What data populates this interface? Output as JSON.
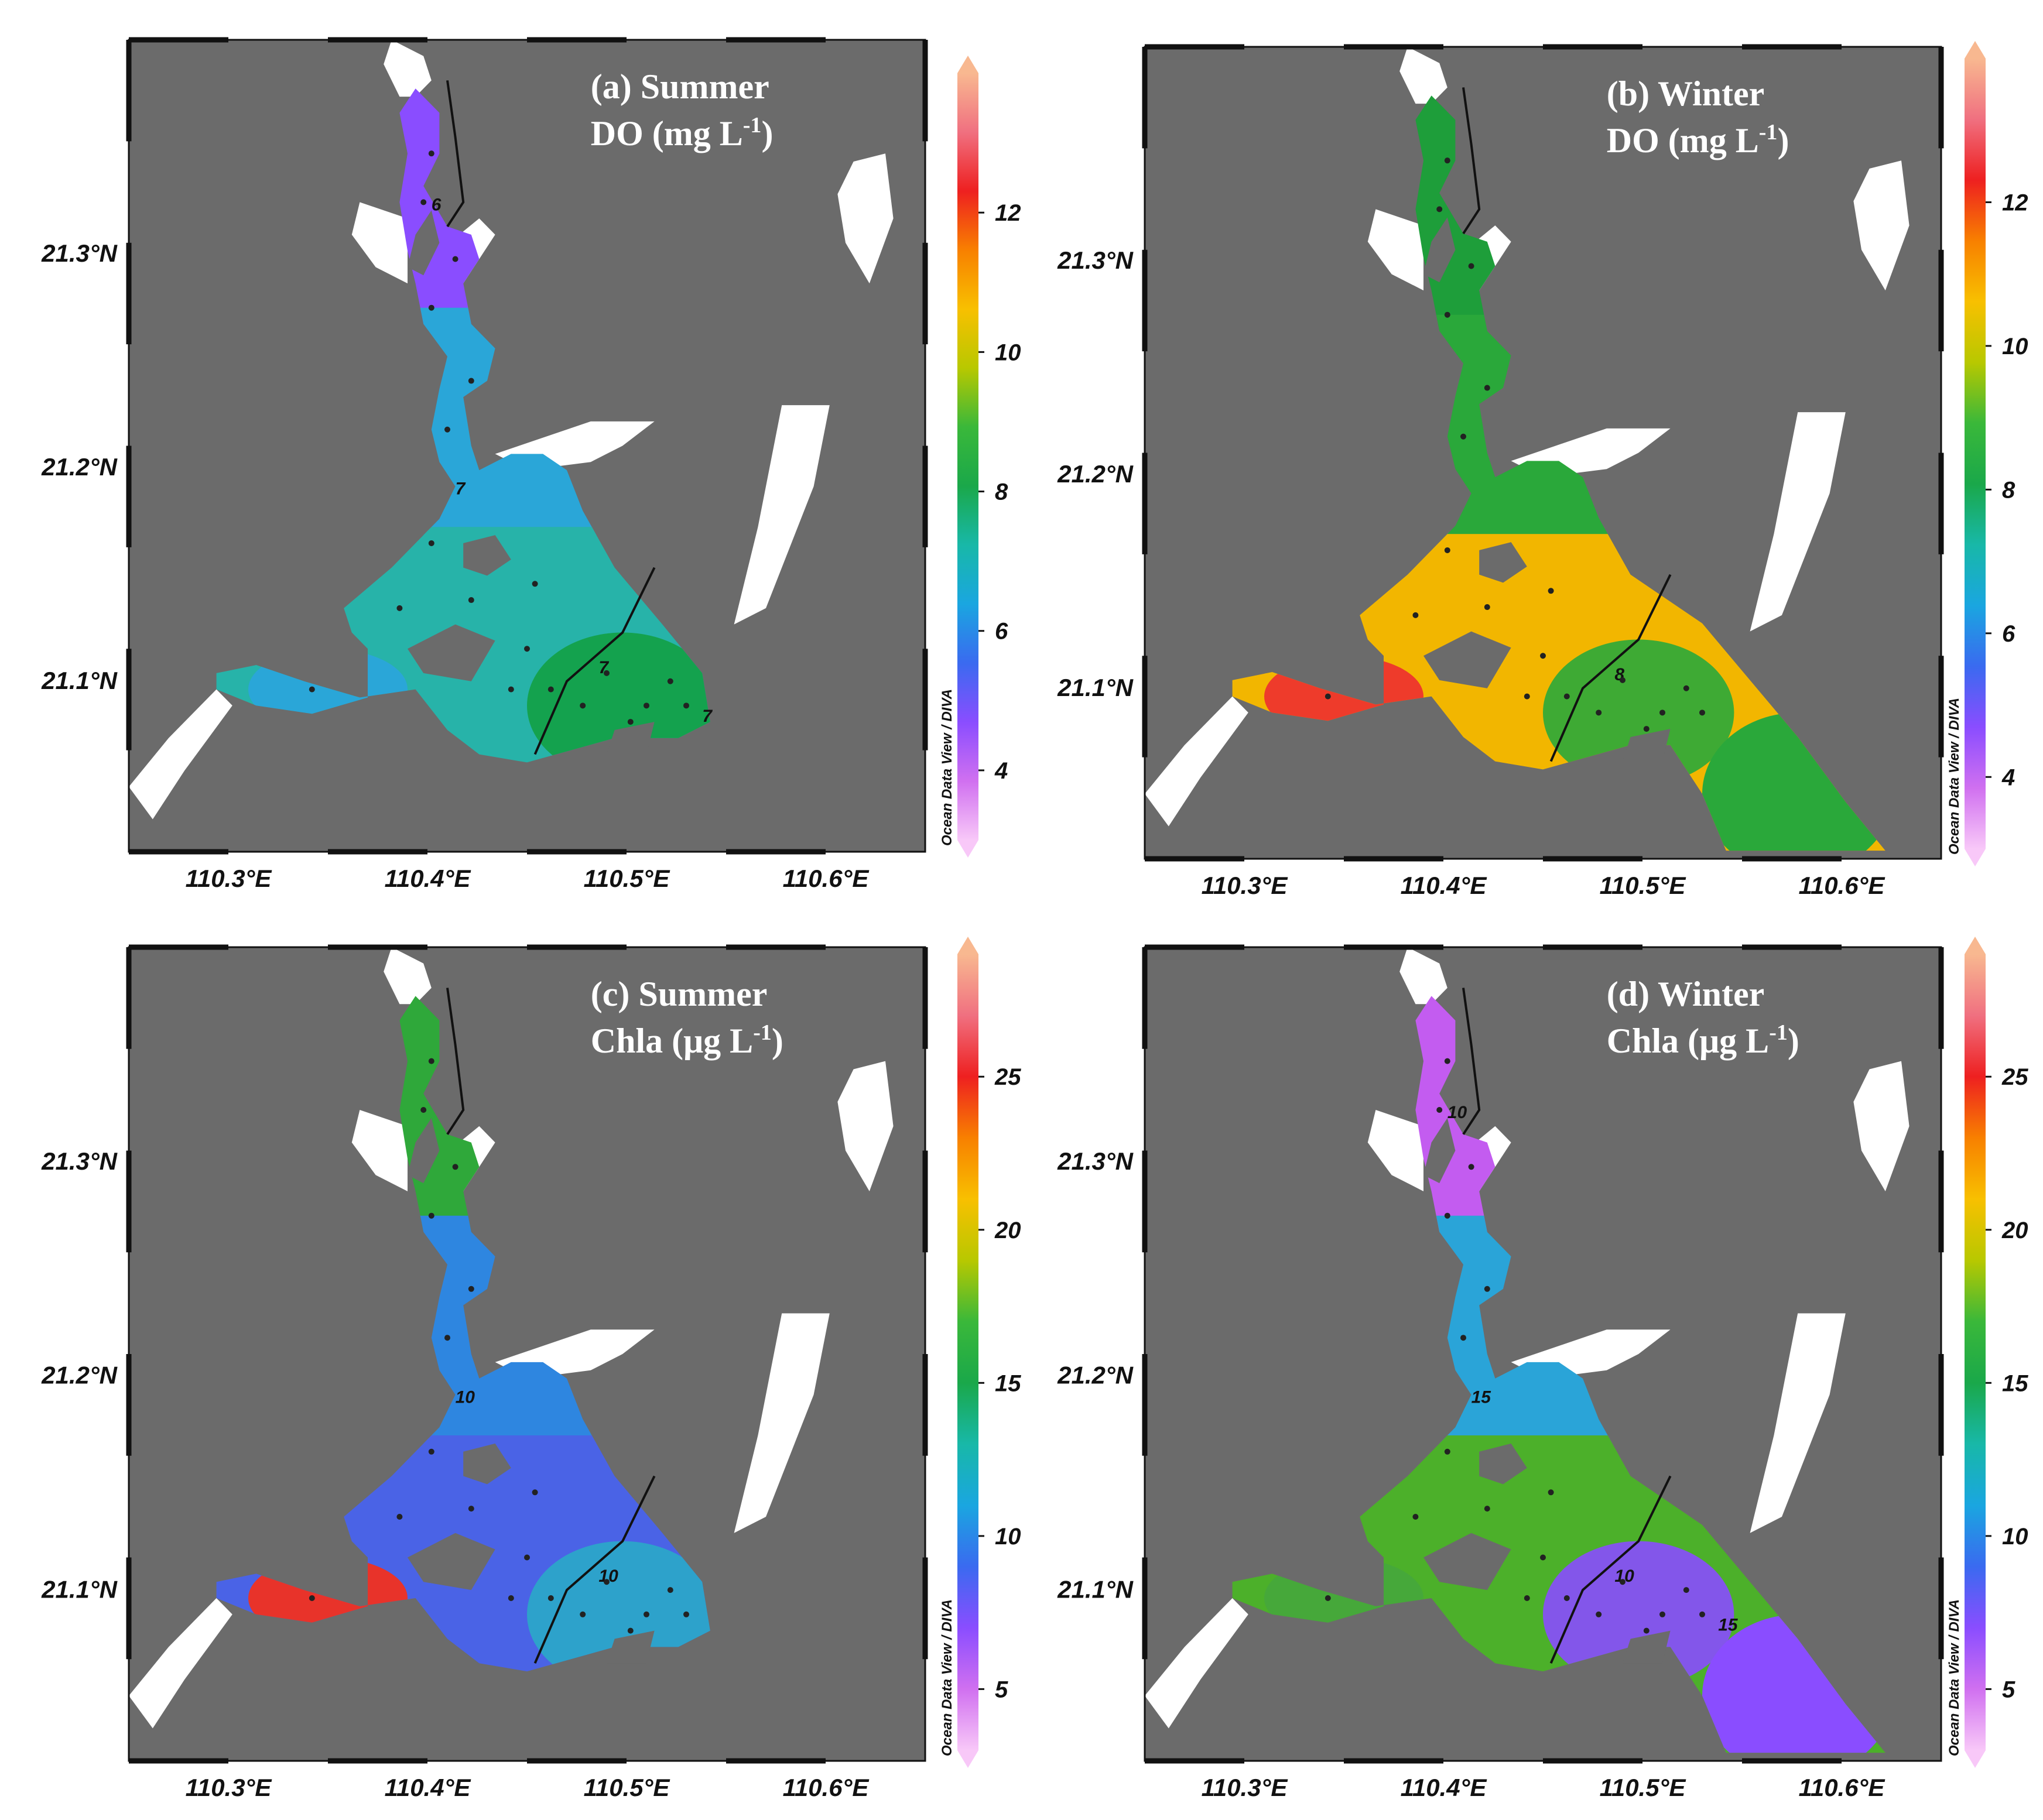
{
  "panels": [
    {
      "id": "a",
      "title_line1": "(a) Summer",
      "title_line2_pre": "DO (mg L",
      "title_line2_sup": "-1",
      "title_line2_post": ")",
      "colorbar_ticks": [
        "4",
        "6",
        "8",
        "10",
        "12"
      ],
      "colorbar_range": [
        3,
        14
      ],
      "credit": "Ocean Data View / DIVA",
      "contour_labels": [
        "7",
        "7",
        "7",
        "6"
      ],
      "colors": {
        "north": "#8a4dff",
        "channel": "#2aa6d8",
        "bay": "#27b3a9",
        "east": "#13a044",
        "west": "#2aa6d8"
      }
    },
    {
      "id": "b",
      "title_line1": "(b) Winter",
      "title_line2_pre": "DO (mg L",
      "title_line2_sup": "-1",
      "title_line2_post": ")",
      "colorbar_ticks": [
        "4",
        "6",
        "8",
        "10",
        "12"
      ],
      "colorbar_range": [
        3,
        14
      ],
      "credit": "Ocean Data View / DIVA",
      "contour_labels": [
        "8"
      ],
      "colors": {
        "north": "#1e9e3a",
        "channel": "#2aa83a",
        "bay": "#f2b600",
        "east": "#2aa83a",
        "west": "#ee3b2b"
      }
    },
    {
      "id": "c",
      "title_line1": "(c) Summer",
      "title_line2_pre": "Chla (μg L",
      "title_line2_sup": "-1",
      "title_line2_post": ")",
      "colorbar_ticks": [
        "5",
        "10",
        "15",
        "20",
        "25"
      ],
      "colorbar_range": [
        3,
        29
      ],
      "credit": "Ocean Data View / DIVA",
      "contour_labels": [
        "10",
        "10"
      ],
      "colors": {
        "north": "#2fa83a",
        "channel": "#2e86e0",
        "bay": "#4a63e6",
        "east": "#2aa9c8",
        "west": "#e8332a"
      }
    },
    {
      "id": "d",
      "title_line1": "(d) Winter",
      "title_line2_pre": "Chla (μg L",
      "title_line2_sup": "-1",
      "title_line2_post": ")",
      "colorbar_ticks": [
        "5",
        "10",
        "15",
        "20",
        "25"
      ],
      "colorbar_range": [
        3,
        29
      ],
      "credit": "Ocean Data View / DIVA",
      "contour_labels": [
        "10",
        "15",
        "15",
        "10"
      ],
      "colors": {
        "north": "#c35cf0",
        "channel": "#2aa4d8",
        "bay": "#4cb02a",
        "east": "#8a4dff",
        "west": "#46a83a"
      }
    }
  ],
  "axes": {
    "x_ticks": [
      "110.3°E",
      "110.4°E",
      "110.5°E",
      "110.6°E"
    ],
    "y_ticks": [
      "21.1°N",
      "21.2°N",
      "21.3°N"
    ]
  },
  "colorscale": [
    "#f8c8f8",
    "#d070f0",
    "#8a4dff",
    "#3a6af0",
    "#1aa6e0",
    "#18b8a8",
    "#1aa84a",
    "#3ab83a",
    "#b8c800",
    "#f8c000",
    "#f88000",
    "#ee2020",
    "#f07080",
    "#f8b890"
  ]
}
